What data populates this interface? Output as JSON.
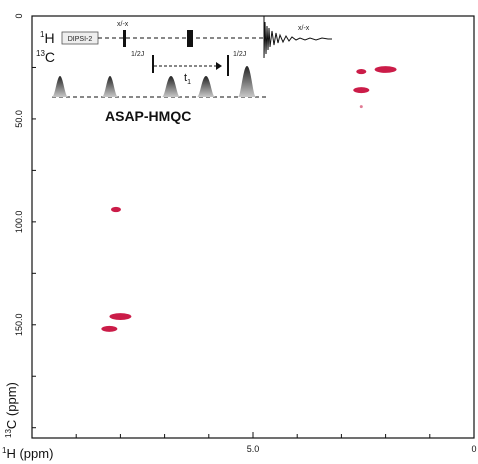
{
  "chart_data": {
    "type": "scatter",
    "subtype": "2D NMR contour spectrum",
    "xlabel": "1H (ppm)",
    "ylabel": "13C (ppm)",
    "x_ticks": [
      "5.0",
      "0"
    ],
    "y_ticks": [
      "0",
      "50.0",
      "100.0",
      "150.0"
    ],
    "xlim": [
      10.0,
      0.0
    ],
    "ylim": [
      0,
      205
    ],
    "x_reversed": true,
    "grid": false,
    "peak_color": "#c8103e",
    "peaks": [
      {
        "x": 8.1,
        "y": 94,
        "intensity": "weak"
      },
      {
        "x": 8.0,
        "y": 146,
        "intensity": "strong"
      },
      {
        "x": 8.25,
        "y": 152,
        "intensity": "medium"
      },
      {
        "x": 2.0,
        "y": 26,
        "intensity": "strong"
      },
      {
        "x": 2.55,
        "y": 27,
        "intensity": "weak"
      },
      {
        "x": 2.55,
        "y": 36,
        "intensity": "medium"
      },
      {
        "x": 2.55,
        "y": 44,
        "intensity": "trace"
      }
    ]
  },
  "inset": {
    "title": "ASAP-HMQC",
    "h_channel": {
      "nucleus_mass": "1",
      "nucleus_symbol": "H"
    },
    "c_channel": {
      "nucleus_mass": "13",
      "nucleus_symbol": "C"
    },
    "dipsi_box": "DIPSI-2",
    "pulse_label_top_left": "x/-x",
    "pulse_label_top_right": "x/-x",
    "delay_left": "1/2J",
    "delay_right": "1/2J",
    "evolution_symbol": "t",
    "evolution_subscript": "1"
  }
}
